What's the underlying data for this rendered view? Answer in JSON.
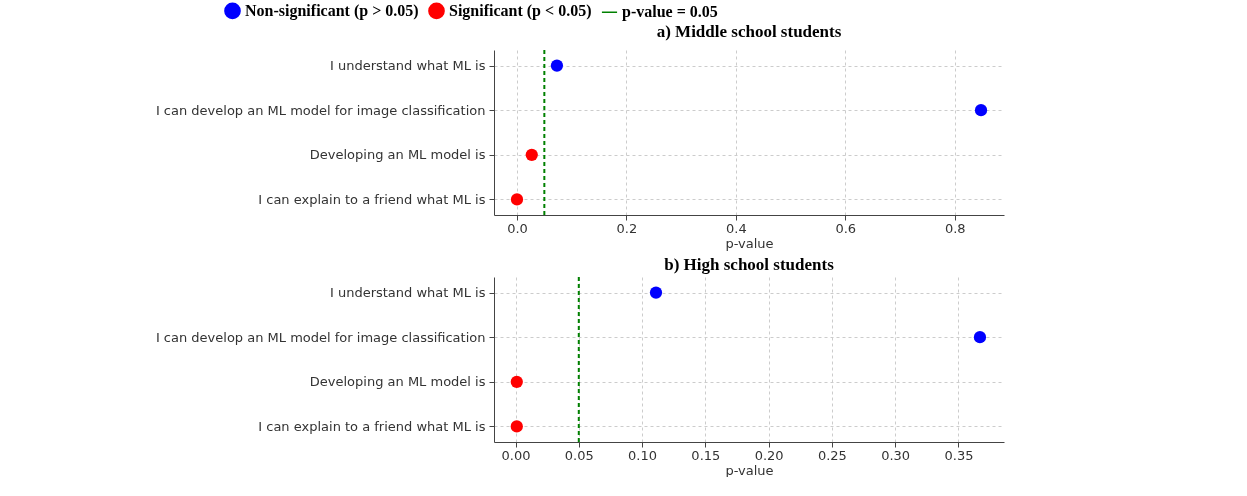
{
  "chart_data": [
    {
      "type": "scatter",
      "orientation": "horizontal",
      "title": "a) Middle school students",
      "xlabel": "p-value",
      "categories": [
        "I understand what ML is",
        "I can develop an ML model for image classification",
        "Developing an ML model is",
        "I can explain to a friend what ML is"
      ],
      "series": [
        {
          "name": "Non-significant (p > 0.05)",
          "color": "#0000ff",
          "values": [
            0.073,
            0.848,
            null,
            null
          ]
        },
        {
          "name": "Significant (p < 0.05)",
          "color": "#ff0000",
          "values": [
            null,
            null,
            0.027,
            0.0
          ]
        }
      ],
      "xlim": [
        -0.042,
        0.89
      ],
      "xticks": [
        {
          "value": 0,
          "label": "0.0"
        },
        {
          "value": 0.2,
          "label": "0.2"
        },
        {
          "value": 0.4,
          "label": "0.4"
        },
        {
          "value": 0.6,
          "label": "0.6"
        },
        {
          "value": 0.8,
          "label": "0.8"
        }
      ],
      "ref_lines": [
        {
          "axis": "x",
          "value": 0.05,
          "label": "p-value = 0.05",
          "color": "#008000",
          "line_style": "dashed"
        }
      ],
      "grid": true,
      "marker": "circle",
      "legend": "top"
    },
    {
      "type": "scatter",
      "orientation": "horizontal",
      "title": "b) High school students",
      "xlabel": "p-value",
      "categories": [
        "I understand what ML is",
        "I can develop an ML model for image classification",
        "Developing an ML model is",
        "I can explain to a friend what ML is"
      ],
      "series": [
        {
          "color": "#0000ff",
          "values": [
            0.111,
            0.367,
            null,
            null
          ]
        },
        {
          "color": "#ff0000",
          "values": [
            null,
            null,
            0.001,
            0.001
          ]
        }
      ],
      "xlim": [
        -0.017,
        0.386
      ],
      "xticks": [
        {
          "value": 0,
          "label": "0.00"
        },
        {
          "value": 0.05,
          "label": "0.05"
        },
        {
          "value": 0.1,
          "label": "0.10"
        },
        {
          "value": 0.15,
          "label": "0.15"
        },
        {
          "value": 0.2,
          "label": "0.20"
        },
        {
          "value": 0.25,
          "label": "0.25"
        },
        {
          "value": 0.3,
          "label": "0.30"
        },
        {
          "value": 0.35,
          "label": "0.35"
        }
      ],
      "ref_lines": [
        {
          "axis": "x",
          "value": 0.05,
          "color": "#008000",
          "line_style": "dashed"
        }
      ],
      "grid": true,
      "marker": "circle",
      "legend": false
    }
  ]
}
